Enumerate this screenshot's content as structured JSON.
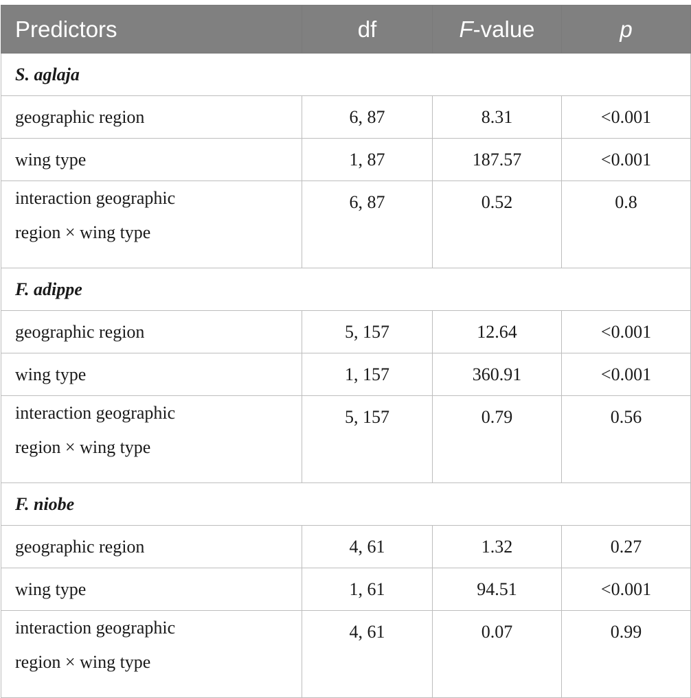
{
  "header": {
    "predictors": "Predictors",
    "df": "df",
    "f_value_italic": "F",
    "f_value_rest": "-value",
    "p": "p"
  },
  "groups": [
    {
      "name": "S. aglaja",
      "rows": [
        {
          "predictor": "geographic region",
          "df": "6, 87",
          "f": "8.31",
          "p": "<0.001"
        },
        {
          "predictor": "wing type",
          "df": "1, 87",
          "f": "187.57",
          "p": "<0.001"
        },
        {
          "predictor_line1": "interaction geographic",
          "predictor_line2": "region × wing type",
          "df": "6, 87",
          "f": "0.52",
          "p": "0.8"
        }
      ]
    },
    {
      "name": "F. adippe",
      "rows": [
        {
          "predictor": "geographic region",
          "df": "5, 157",
          "f": "12.64",
          "p": "<0.001"
        },
        {
          "predictor": "wing type",
          "df": "1, 157",
          "f": "360.91",
          "p": "<0.001"
        },
        {
          "predictor_line1": "interaction geographic",
          "predictor_line2": "region × wing type",
          "df": "5, 157",
          "f": "0.79",
          "p": "0.56"
        }
      ]
    },
    {
      "name": "F. niobe",
      "rows": [
        {
          "predictor": "geographic region",
          "df": "4, 61",
          "f": "1.32",
          "p": "0.27"
        },
        {
          "predictor": "wing type",
          "df": "1, 61",
          "f": "94.51",
          "p": "<0.001"
        },
        {
          "predictor_line1": "interaction geographic",
          "predictor_line2": "region × wing type",
          "df": "4, 61",
          "f": "0.07",
          "p": "0.99"
        }
      ]
    }
  ]
}
